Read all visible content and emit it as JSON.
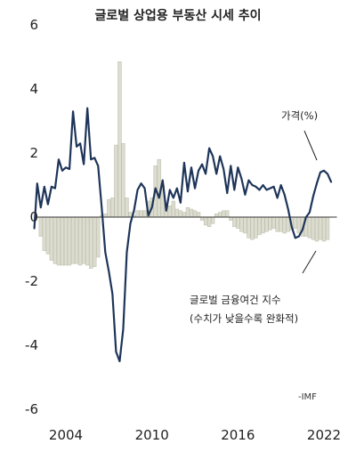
{
  "chart_data": {
    "type": "bar",
    "title": "글로벌 상업용 부동산 시세 추이",
    "source": "-IMF",
    "y_ticks": [
      "6",
      "4",
      "2",
      "0",
      "-2",
      "-4",
      "-6"
    ],
    "x_ticks": [
      "2004",
      "2010",
      "2016",
      "2022"
    ],
    "ylim": [
      -6,
      6
    ],
    "xlim": [
      2001.5,
      2023.2
    ],
    "colors": {
      "line": "#1e3559",
      "bars": "#dcdccf",
      "bar_edge": "#b9b9aa",
      "zero": "#333333"
    },
    "series": [
      {
        "name": "가격(%)",
        "kind": "line",
        "x": [
          2001.8,
          2002.0,
          2002.25,
          2002.5,
          2002.75,
          2003.0,
          2003.25,
          2003.5,
          2003.75,
          2004.0,
          2004.25,
          2004.5,
          2004.75,
          2005.0,
          2005.25,
          2005.5,
          2005.75,
          2006.0,
          2006.25,
          2006.5,
          2006.75,
          2007.0,
          2007.25,
          2007.5,
          2007.75,
          2008.0,
          2008.25,
          2008.5,
          2008.75,
          2009.0,
          2009.25,
          2009.5,
          2009.75,
          2010.0,
          2010.25,
          2010.5,
          2010.75,
          2011.0,
          2011.25,
          2011.5,
          2011.75,
          2012.0,
          2012.25,
          2012.5,
          2012.75,
          2013.0,
          2013.25,
          2013.5,
          2013.75,
          2014.0,
          2014.25,
          2014.5,
          2014.75,
          2015.0,
          2015.25,
          2015.5,
          2015.75,
          2016.0,
          2016.25,
          2016.5,
          2016.75,
          2017.0,
          2017.25,
          2017.5,
          2017.75,
          2018.0,
          2018.25,
          2018.5,
          2018.75,
          2019.0,
          2019.25,
          2019.5,
          2019.75,
          2020.0,
          2020.25,
          2020.5,
          2020.75,
          2021.0,
          2021.25,
          2021.5,
          2021.75,
          2022.0,
          2022.25,
          2022.5
        ],
        "values": [
          -0.35,
          1.05,
          0.3,
          0.95,
          0.4,
          0.95,
          0.9,
          1.8,
          1.45,
          1.55,
          1.5,
          3.3,
          2.2,
          2.3,
          1.65,
          3.4,
          1.8,
          1.85,
          1.6,
          0.3,
          -1.1,
          -1.7,
          -2.4,
          -4.2,
          -4.5,
          -3.5,
          -1.1,
          -0.2,
          0.2,
          0.85,
          1.05,
          0.9,
          0.05,
          0.3,
          0.9,
          0.6,
          1.15,
          0.2,
          0.85,
          0.6,
          0.9,
          0.45,
          1.7,
          0.8,
          1.55,
          0.9,
          1.45,
          1.65,
          1.35,
          2.15,
          1.9,
          1.35,
          1.9,
          1.5,
          0.75,
          1.6,
          0.85,
          1.55,
          1.2,
          0.7,
          1.15,
          1.0,
          0.95,
          0.85,
          1.0,
          0.85,
          0.9,
          0.95,
          0.6,
          1.0,
          0.7,
          0.25,
          -0.3,
          -0.65,
          -0.6,
          -0.4,
          0.0,
          0.15,
          0.65,
          1.05,
          1.4,
          1.45,
          1.35,
          1.1
        ]
      },
      {
        "name": "글로벌 금융여건 지수",
        "kind": "bar",
        "x": [
          2002.25,
          2002.5,
          2002.75,
          2003.0,
          2003.25,
          2003.5,
          2003.75,
          2004.0,
          2004.25,
          2004.5,
          2004.75,
          2005.0,
          2005.25,
          2005.5,
          2005.75,
          2006.0,
          2006.25,
          2006.5,
          2006.75,
          2007.0,
          2007.25,
          2007.5,
          2007.75,
          2008.0,
          2008.25,
          2008.5,
          2008.75,
          2009.0,
          2009.25,
          2009.5,
          2009.75,
          2010.0,
          2010.25,
          2010.5,
          2010.75,
          2011.0,
          2011.25,
          2011.5,
          2011.75,
          2012.0,
          2012.25,
          2012.5,
          2012.75,
          2013.0,
          2013.25,
          2013.5,
          2013.75,
          2014.0,
          2014.25,
          2014.5,
          2014.75,
          2015.0,
          2015.25,
          2015.5,
          2015.75,
          2016.0,
          2016.25,
          2016.5,
          2016.75,
          2017.0,
          2017.25,
          2017.5,
          2017.75,
          2018.0,
          2018.25,
          2018.5,
          2018.75,
          2019.0,
          2019.25,
          2019.5,
          2019.75,
          2020.0,
          2020.25,
          2020.5,
          2020.75,
          2021.0,
          2021.25,
          2021.5,
          2021.75,
          2022.0,
          2022.25
        ],
        "values": [
          -0.6,
          -1.05,
          -1.15,
          -1.35,
          -1.45,
          -1.5,
          -1.5,
          -1.5,
          -1.5,
          -1.45,
          -1.45,
          -1.5,
          -1.45,
          -1.5,
          -1.6,
          -1.55,
          -1.25,
          0.05,
          0.1,
          0.55,
          0.6,
          2.25,
          4.85,
          2.3,
          0.6,
          0.15,
          0.05,
          0.2,
          0.2,
          0.2,
          0.5,
          0.6,
          1.6,
          1.8,
          1.0,
          0.4,
          0.35,
          0.5,
          0.25,
          0.2,
          0.15,
          0.3,
          0.25,
          0.2,
          0.15,
          -0.1,
          -0.25,
          -0.3,
          -0.2,
          0.1,
          0.15,
          0.2,
          0.2,
          -0.1,
          -0.3,
          -0.35,
          -0.45,
          -0.5,
          -0.65,
          -0.7,
          -0.65,
          -0.55,
          -0.5,
          -0.45,
          -0.4,
          -0.35,
          -0.45,
          -0.45,
          -0.5,
          -0.45,
          -0.4,
          -0.35,
          -0.5,
          -0.6,
          -0.6,
          -0.65,
          -0.7,
          -0.75,
          -0.7,
          -0.75,
          -0.7
        ]
      }
    ]
  },
  "annotations": {
    "price_label": "가격(%)",
    "fci_label": "글로벌 금융여건 지수",
    "fci_note": "(수치가 낮을수록 완화적)"
  }
}
